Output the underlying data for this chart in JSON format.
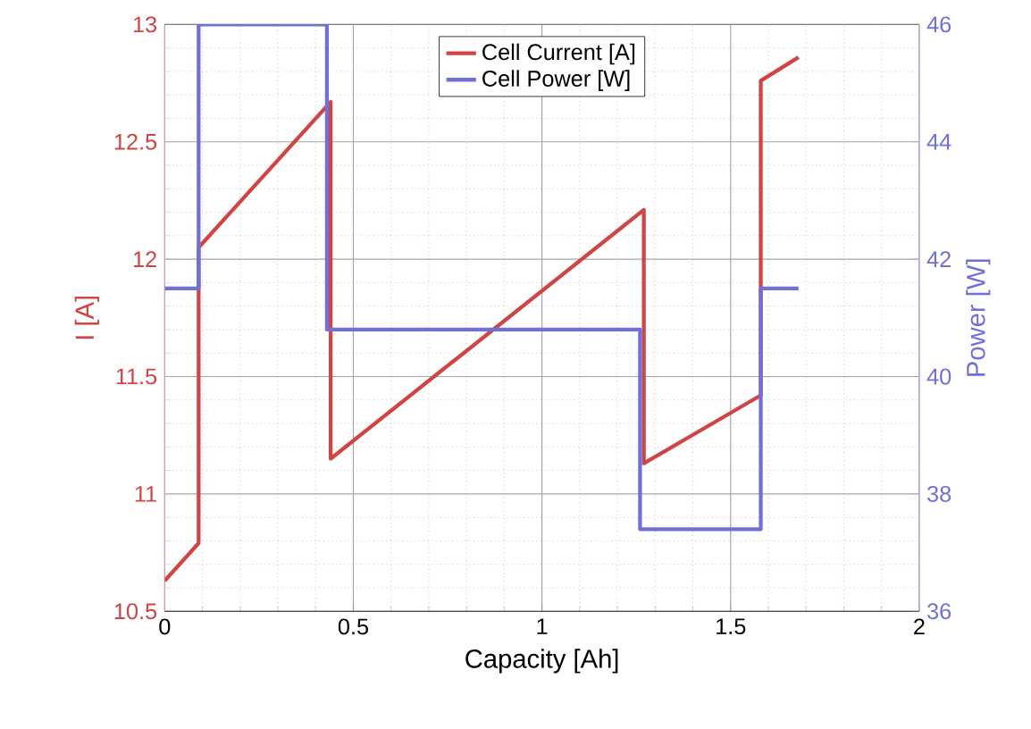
{
  "chart_data": {
    "type": "line",
    "xlabel": "Capacity [Ah]",
    "ylabel": "I [A]",
    "y2label": "Power [W]",
    "xlim": [
      0,
      2
    ],
    "xticks": [
      0,
      0.5,
      1,
      1.5,
      2
    ],
    "ylim": [
      10.5,
      13
    ],
    "yticks": [
      10.5,
      11,
      11.5,
      12,
      12.5,
      13
    ],
    "y2lim": [
      36,
      46
    ],
    "y2ticks": [
      36,
      38,
      40,
      42,
      44,
      46
    ],
    "grid": true,
    "legend": "top",
    "marker": "none",
    "line_style": "solid",
    "series": [
      {
        "name": "Cell Current [A]",
        "color": "#d04444",
        "x": [
          0,
          0.09,
          0.09,
          0.44,
          0.44,
          1.27,
          1.27,
          1.58,
          1.58,
          1.68
        ],
        "values": [
          10.63,
          10.79,
          12.05,
          12.67,
          11.15,
          12.21,
          11.13,
          11.42,
          12.76,
          12.86
        ]
      },
      {
        "name": "Cell Power [W]",
        "color": "#7070d8",
        "axis": "y2",
        "x": [
          0,
          0.09,
          0.09,
          0.43,
          0.43,
          1.26,
          1.26,
          1.58,
          1.58,
          1.68
        ],
        "values": [
          41.5,
          41.5,
          46,
          46,
          40.8,
          40.8,
          37.4,
          37.4,
          41.5,
          41.5
        ]
      }
    ]
  }
}
